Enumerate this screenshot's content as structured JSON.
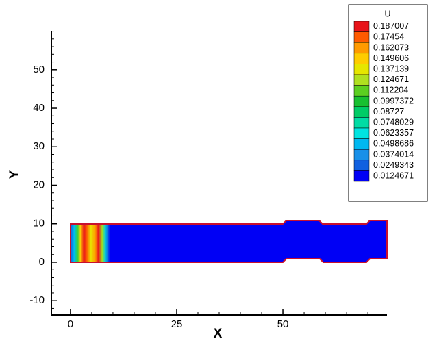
{
  "chart_data": {
    "type": "contour",
    "x_label": "X",
    "y_label": "Y",
    "xlim": [
      -4.5,
      74.5
    ],
    "ylim": [
      -13.7,
      60.1
    ],
    "xticks": [
      0,
      25,
      50
    ],
    "yticks": [
      -10,
      0,
      10,
      20,
      30,
      40,
      50
    ],
    "legend": {
      "title": "U",
      "position": "upper right",
      "levels": [
        0.187007,
        0.17454,
        0.162073,
        0.149606,
        0.137139,
        0.124671,
        0.112204,
        0.0997372,
        0.08727,
        0.0748029,
        0.0623357,
        0.0498686,
        0.0374014,
        0.0249343,
        0.0124671
      ],
      "colors": [
        "#e8141a",
        "#ff5a00",
        "#ff9a00",
        "#ffcc00",
        "#e6e600",
        "#b0e020",
        "#5ccf20",
        "#18c030",
        "#00cc66",
        "#00dca4",
        "#00e4e0",
        "#00b8f0",
        "#1890e8",
        "#1060e0",
        "#0000f5"
      ]
    }
  }
}
